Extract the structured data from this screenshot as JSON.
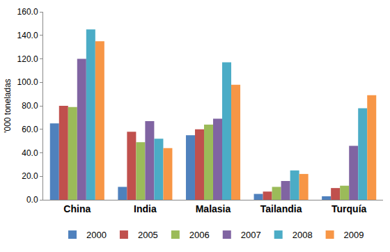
{
  "chart_data": {
    "type": "bar",
    "y_label": "'000 toneladas",
    "categories": [
      "China",
      "India",
      "Malasia",
      "Tailandia",
      "Turquía"
    ],
    "series": [
      {
        "name": "2000",
        "color": "#4f81bd",
        "values": [
          65,
          11,
          55,
          5,
          3
        ]
      },
      {
        "name": "2005",
        "color": "#c0504d",
        "values": [
          80,
          58,
          60,
          7,
          10
        ]
      },
      {
        "name": "2006",
        "color": "#9bbb59",
        "values": [
          79,
          49,
          64,
          11,
          12
        ]
      },
      {
        "name": "2007",
        "color": "#8064a2",
        "values": [
          120,
          67,
          69,
          16,
          46
        ]
      },
      {
        "name": "2008",
        "color": "#4bacc6",
        "values": [
          145,
          52,
          117,
          25,
          78
        ]
      },
      {
        "name": "2009",
        "color": "#f79646",
        "values": [
          135,
          44,
          98,
          22,
          89
        ]
      }
    ],
    "ylim": [
      0,
      160
    ],
    "yticks": [
      {
        "value": 0,
        "label": "0.0"
      },
      {
        "value": 20,
        "label": "20.0"
      },
      {
        "value": 40,
        "label": "40.0"
      },
      {
        "value": 60,
        "label": "60.0"
      },
      {
        "value": 80,
        "label": "80.0"
      },
      {
        "value": 100,
        "label": "100.0"
      },
      {
        "value": 120,
        "label": "120.0"
      },
      {
        "value": 140,
        "label": "140.0"
      },
      {
        "value": 160,
        "label": "160.0"
      }
    ],
    "grid": false,
    "legend": "bottom"
  }
}
